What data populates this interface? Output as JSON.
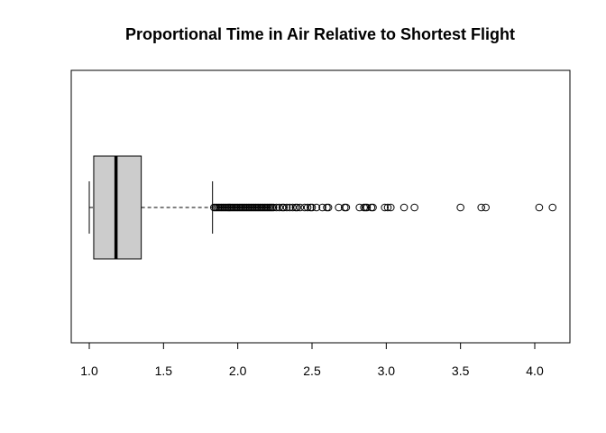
{
  "chart_data": {
    "type": "boxplot",
    "orientation": "horizontal",
    "title": "Proportional Time in Air Relative to Shortest Flight",
    "xlabel": "",
    "ylabel": "",
    "xlim": [
      0.9,
      4.15
    ],
    "x_ticks": [
      1.0,
      1.5,
      2.0,
      2.5,
      3.0,
      3.5,
      4.0
    ],
    "x_tick_labels": [
      "1.0",
      "1.5",
      "2.0",
      "2.5",
      "3.0",
      "3.5",
      "4.0"
    ],
    "grid": false,
    "box_fill": "#cccccc",
    "stats": {
      "whisker_low": 1.0,
      "q1": 1.03,
      "median": 1.18,
      "q3": 1.35,
      "whisker_high": 1.83
    },
    "outliers": [
      1.84,
      1.85,
      1.86,
      1.87,
      1.88,
      1.89,
      1.9,
      1.91,
      1.92,
      1.93,
      1.94,
      1.95,
      1.96,
      1.97,
      1.98,
      1.99,
      2.0,
      2.01,
      2.02,
      2.03,
      2.04,
      2.05,
      2.06,
      2.07,
      2.08,
      2.09,
      2.1,
      2.11,
      2.12,
      2.13,
      2.14,
      2.15,
      2.16,
      2.17,
      2.18,
      2.19,
      2.2,
      2.21,
      2.22,
      2.23,
      2.24,
      2.26,
      2.28,
      2.3,
      2.31,
      2.33,
      2.35,
      2.37,
      2.39,
      2.4,
      2.42,
      2.45,
      2.47,
      2.49,
      2.5,
      2.53,
      2.57,
      2.6,
      2.61,
      2.68,
      2.72,
      2.73,
      2.82,
      2.85,
      2.86,
      2.87,
      2.9,
      2.91,
      2.99,
      3.01,
      3.03,
      3.12,
      3.19,
      3.5,
      3.64,
      3.67,
      4.03,
      4.12
    ]
  }
}
